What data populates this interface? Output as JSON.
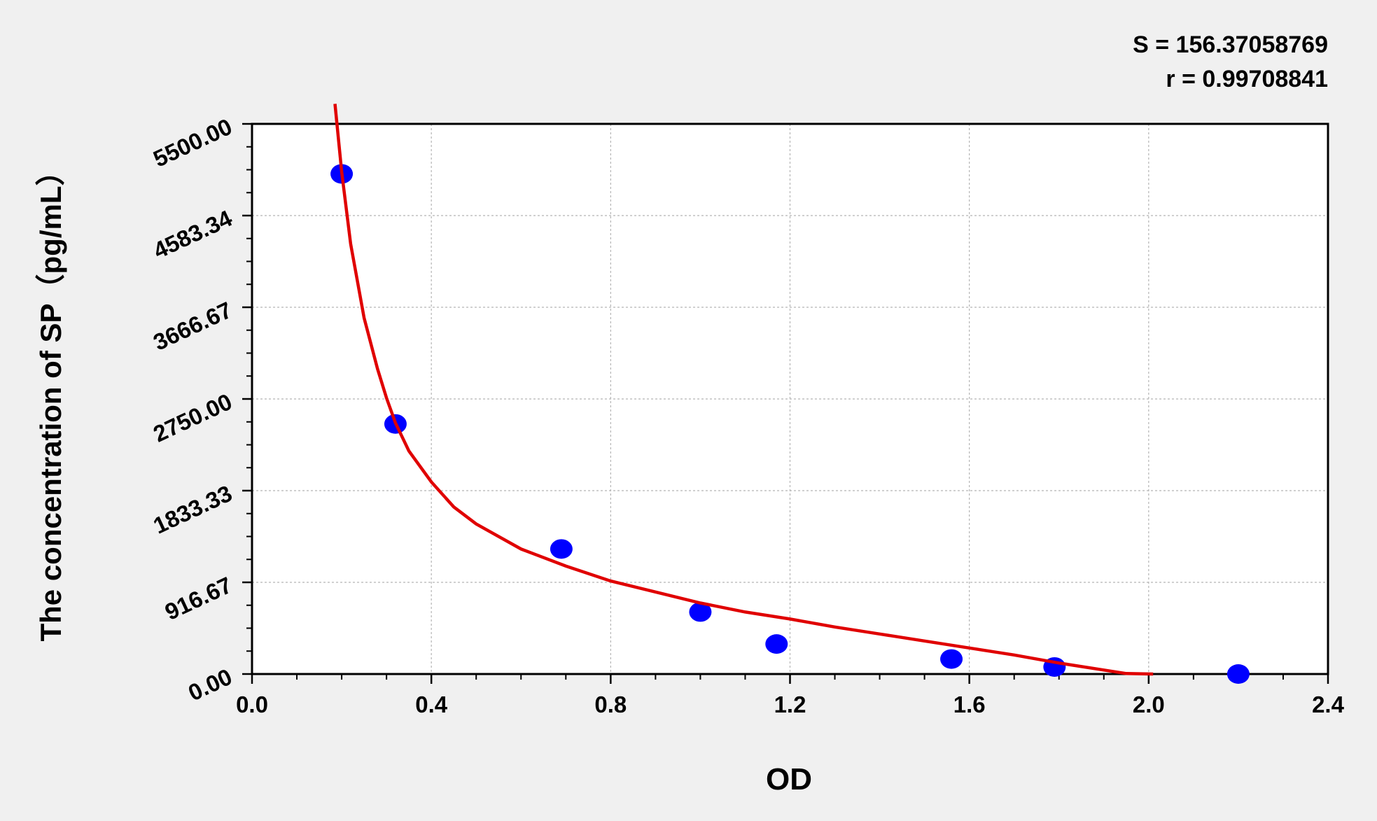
{
  "chart_data": {
    "type": "scatter",
    "stats": [
      "S = 156.37058769",
      "r = 0.99708841"
    ],
    "xlabel": "OD",
    "ylabel": "The concentration of SP（pg/mL）",
    "xlim": [
      0,
      2.4
    ],
    "ylim": [
      0,
      5500
    ],
    "x_ticks": [
      "0.0",
      "0.4",
      "0.8",
      "1.2",
      "1.6",
      "2.0",
      "2.4"
    ],
    "y_ticks": [
      "0.00",
      "916.67",
      "1833.33",
      "2750.00",
      "3666.67",
      "4583.34",
      "5500.00"
    ],
    "grid": true,
    "points": {
      "x": [
        0.2,
        0.32,
        0.69,
        1.0,
        1.17,
        1.56,
        1.79,
        2.2
      ],
      "y": [
        5000,
        2500,
        1250,
        620,
        300,
        150,
        70,
        0
      ]
    },
    "fit_curve": {
      "x": [
        0.185,
        0.2,
        0.22,
        0.25,
        0.28,
        0.3,
        0.32,
        0.35,
        0.4,
        0.45,
        0.5,
        0.6,
        0.7,
        0.8,
        0.9,
        1.0,
        1.1,
        1.2,
        1.3,
        1.4,
        1.5,
        1.6,
        1.7,
        1.8,
        1.9,
        1.95,
        2.01
      ],
      "y": [
        5700,
        5020,
        4300,
        3560,
        3050,
        2760,
        2510,
        2230,
        1920,
        1670,
        1500,
        1250,
        1080,
        930,
        820,
        710,
        620,
        550,
        470,
        400,
        330,
        260,
        190,
        110,
        40,
        5,
        0
      ]
    },
    "colors": {
      "points": "#0000ff",
      "curve": "#e00000",
      "frame": "#000000",
      "grid": "#b4b4b4"
    }
  }
}
